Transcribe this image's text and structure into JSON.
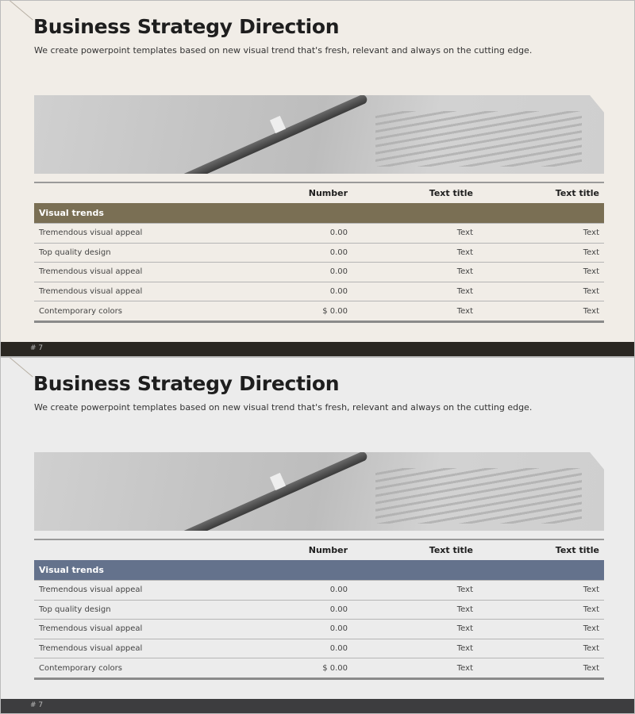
{
  "slides": [
    {
      "title": "Business Strategy Direction",
      "subtitle": "We create powerpoint templates based on new visual trend that's fresh, relevant and always on the cutting edge.",
      "page": "# 7",
      "band_color": "#7a6f54",
      "footer_color": "#2a2722",
      "table": {
        "headers": [
          "",
          "Number",
          "Text title",
          "Text title"
        ],
        "section": "Visual trends",
        "rows": [
          [
            "Tremendous visual appeal",
            "0.00",
            "Text",
            "Text"
          ],
          [
            "Top quality design",
            "0.00",
            "Text",
            "Text"
          ],
          [
            "Tremendous visual appeal",
            "0.00",
            "Text",
            "Text"
          ],
          [
            "Tremendous visual appeal",
            "0.00",
            "Text",
            "Text"
          ],
          [
            "Contemporary colors",
            "$ 0.00",
            "Text",
            "Text"
          ]
        ]
      }
    },
    {
      "title": "Business Strategy Direction",
      "subtitle": "We create powerpoint templates based on new visual trend that's fresh, relevant and always on the cutting edge.",
      "page": "# 7",
      "band_color": "#64728c",
      "footer_color": "#3d3d3f",
      "table": {
        "headers": [
          "",
          "Number",
          "Text title",
          "Text title"
        ],
        "section": "Visual trends",
        "rows": [
          [
            "Tremendous visual appeal",
            "0.00",
            "Text",
            "Text"
          ],
          [
            "Top quality design",
            "0.00",
            "Text",
            "Text"
          ],
          [
            "Tremendous visual appeal",
            "0.00",
            "Text",
            "Text"
          ],
          [
            "Tremendous visual appeal",
            "0.00",
            "Text",
            "Text"
          ],
          [
            "Contemporary colors",
            "$ 0.00",
            "Text",
            "Text"
          ]
        ]
      }
    }
  ]
}
